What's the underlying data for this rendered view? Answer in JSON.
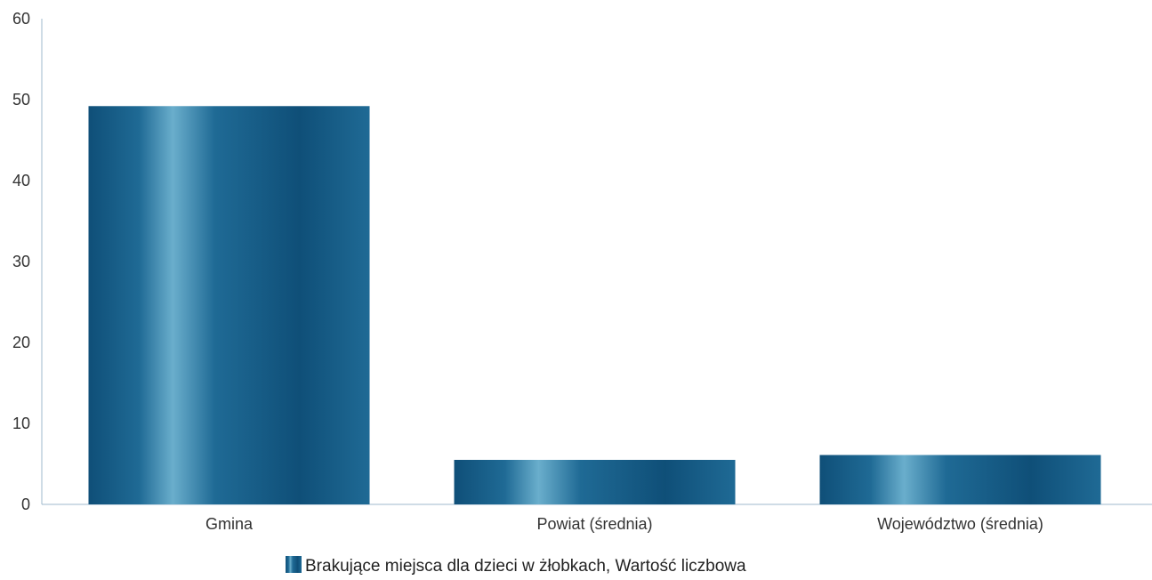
{
  "chart_data": {
    "type": "bar",
    "categories": [
      "Gmina",
      "Powiat (średnia)",
      "Województwo (średnia)"
    ],
    "series": [
      {
        "name": "Brakujące miejsca dla dzieci w żłobkach, Wartość liczbowa",
        "values": [
          49.2,
          5.5,
          6.1
        ]
      }
    ],
    "title": "",
    "xlabel": "",
    "ylabel": "",
    "ylim": [
      0,
      60
    ],
    "yticks": [
      0,
      10,
      20,
      30,
      40,
      50,
      60
    ],
    "grid": false,
    "legend_position": "bottom-center",
    "colors": {
      "bar_dark": "#0f4f78",
      "bar_mid": "#1f6a95",
      "bar_light": "#6aaecc",
      "axis": "#9fb9cc"
    }
  }
}
